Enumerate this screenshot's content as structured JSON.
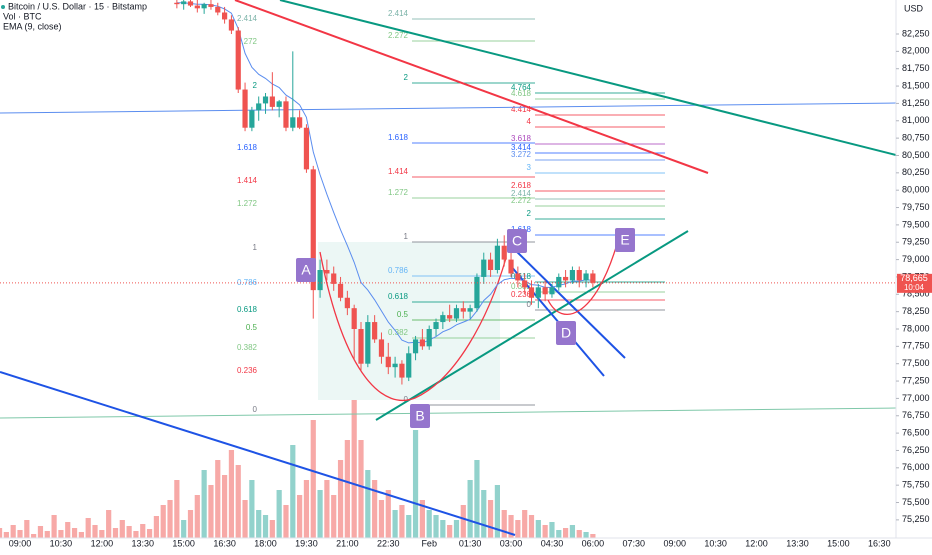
{
  "header": {
    "symbol": "Bitcoin / U.S. Dollar · 15 · Bitstamp",
    "volume": "Vol · BTC",
    "ema": "EMA (9, close)"
  },
  "chart_data": {
    "type": "candlestick",
    "categories": [
      null,
      null,
      null,
      "09:00",
      null,
      null,
      null,
      null,
      null,
      "10:30",
      null,
      null,
      null,
      null,
      null,
      "12:00",
      null,
      null,
      null,
      null,
      null,
      "13:30",
      null,
      null,
      null,
      null,
      null,
      "15:00",
      null,
      null,
      null,
      null,
      null,
      "16:30",
      null,
      null,
      null,
      null,
      null,
      "18:00",
      null,
      null,
      null,
      null,
      null,
      "19:30",
      null,
      null,
      null,
      null,
      null,
      "21:00",
      null,
      null,
      null,
      null,
      null,
      "22:30",
      null,
      null,
      null,
      null,
      null,
      "Feb",
      null,
      null,
      null,
      null,
      null,
      "01:30",
      null,
      null,
      null,
      null,
      null,
      "03:00",
      null,
      null,
      null,
      null,
      null,
      "04:30",
      null,
      null,
      null,
      null,
      null,
      "06:00"
    ],
    "open": [
      null,
      null,
      null,
      null,
      null,
      null,
      null,
      null,
      null,
      null,
      null,
      null,
      null,
      null,
      null,
      null,
      null,
      null,
      null,
      null,
      null,
      null,
      null,
      null,
      null,
      null,
      82700,
      82680,
      82720,
      82660,
      82620,
      82680,
      82640,
      82560,
      82460,
      82300,
      81450,
      80900,
      81150,
      81250,
      81350,
      81200,
      81280,
      80900,
      81050,
      80900,
      80300,
      78560,
      78850,
      78800,
      78650,
      78450,
      78300,
      78000,
      77500,
      78100,
      77850,
      77600,
      77450,
      77500,
      77300,
      77650,
      77850,
      77750,
      78000,
      78100,
      78200,
      78150,
      78300,
      78250,
      78300,
      78750,
      79000,
      78850,
      79200,
      79000,
      78800,
      78700,
      78600,
      78450,
      78600,
      78500,
      78600,
      78750,
      78700,
      78850,
      78700,
      78800
    ],
    "high": [
      null,
      null,
      null,
      null,
      null,
      null,
      null,
      null,
      null,
      null,
      null,
      null,
      null,
      null,
      null,
      null,
      null,
      null,
      null,
      null,
      null,
      null,
      null,
      null,
      null,
      null,
      82780,
      82760,
      82780,
      82740,
      82700,
      82760,
      82700,
      82640,
      82520,
      82350,
      81550,
      81200,
      81350,
      81400,
      81700,
      81300,
      81350,
      82000,
      81150,
      80950,
      80350,
      79000,
      79000,
      78900,
      78750,
      78550,
      78350,
      78100,
      78200,
      78200,
      77950,
      77800,
      77600,
      77550,
      77750,
      77900,
      78000,
      78050,
      78150,
      78250,
      78350,
      78350,
      78400,
      78350,
      78800,
      79100,
      79100,
      79300,
      79350,
      79100,
      78900,
      78800,
      78700,
      78650,
      78700,
      78650,
      78800,
      78850,
      78900,
      78900,
      78850,
      78850
    ],
    "low": [
      null,
      null,
      null,
      null,
      null,
      null,
      null,
      null,
      null,
      null,
      null,
      null,
      null,
      null,
      null,
      null,
      null,
      null,
      null,
      null,
      null,
      null,
      null,
      null,
      null,
      null,
      82620,
      82600,
      82640,
      82560,
      82540,
      82600,
      82520,
      82400,
      82250,
      81400,
      80850,
      80850,
      81000,
      81100,
      81150,
      81050,
      80850,
      80850,
      80880,
      80250,
      78150,
      78450,
      78700,
      78550,
      78400,
      78200,
      77550,
      77400,
      77450,
      77800,
      77500,
      77350,
      77300,
      77200,
      77250,
      77550,
      77700,
      77700,
      77900,
      78000,
      78100,
      78100,
      78150,
      78150,
      78250,
      78650,
      78750,
      78800,
      78900,
      78750,
      78600,
      78500,
      78350,
      78300,
      78400,
      78450,
      78550,
      78600,
      78650,
      78600,
      78600,
      78600
    ],
    "close": [
      null,
      null,
      null,
      null,
      null,
      null,
      null,
      null,
      null,
      null,
      null,
      null,
      null,
      null,
      null,
      null,
      null,
      null,
      null,
      null,
      null,
      null,
      null,
      null,
      null,
      null,
      82680,
      82720,
      82660,
      82620,
      82680,
      82640,
      82560,
      82460,
      82300,
      81450,
      80900,
      81150,
      81250,
      81350,
      81200,
      81280,
      80900,
      81050,
      80900,
      80300,
      78560,
      78850,
      78800,
      78650,
      78450,
      78300,
      78000,
      77500,
      78100,
      77850,
      77600,
      77450,
      77500,
      77300,
      77650,
      77850,
      77750,
      78000,
      78100,
      78200,
      78150,
      78300,
      78250,
      78300,
      78750,
      79000,
      78850,
      79200,
      79000,
      78800,
      78700,
      78600,
      78450,
      78600,
      78500,
      78600,
      78750,
      78700,
      78850,
      78700,
      78800,
      78665
    ],
    "volume": [
      12,
      8,
      15,
      10,
      20,
      6,
      14,
      9,
      25,
      10,
      18,
      12,
      8,
      22,
      15,
      10,
      30,
      12,
      20,
      14,
      9,
      16,
      11,
      24,
      35,
      40,
      60,
      20,
      30,
      45,
      70,
      55,
      80,
      65,
      90,
      75,
      40,
      60,
      30,
      25,
      20,
      50,
      35,
      95,
      45,
      60,
      120,
      50,
      60,
      45,
      80,
      100,
      140,
      100,
      70,
      60,
      40,
      50,
      30,
      35,
      25,
      110,
      40,
      30,
      25,
      20,
      15,
      20,
      35,
      60,
      80,
      50,
      40,
      55,
      30,
      25,
      20,
      30,
      25,
      20,
      15,
      18,
      10,
      12,
      15,
      10,
      8,
      6
    ],
    "ema": [
      null,
      null,
      null,
      null,
      null,
      null,
      null,
      null,
      null,
      null,
      null,
      null,
      null,
      null,
      null,
      null,
      null,
      null,
      null,
      null,
      null,
      null,
      null,
      null,
      null,
      null,
      82700,
      82700,
      82690,
      82680,
      82680,
      82670,
      82650,
      82610,
      82550,
      82330,
      81970,
      81770,
      81670,
      81610,
      81530,
      81480,
      81370,
      81310,
      81230,
      81050,
      80550,
      80220,
      79940,
      79680,
      79430,
      79200,
      78960,
      78670,
      78560,
      78420,
      78260,
      78100,
      77980,
      77840,
      77800,
      77810,
      77800,
      77840,
      77890,
      77960,
      78000,
      78060,
      78100,
      78140,
      78260,
      78410,
      78500,
      78640,
      78710,
      78730,
      78720,
      78690,
      78640,
      78630,
      78600,
      78600,
      78630,
      78650,
      78690,
      78690,
      78710,
      78700
    ],
    "up_color": "#26a69a",
    "down_color": "#ef5350",
    "ema_color": "#5b8def",
    "xticks": [
      {
        "value": 93,
        "label": "07:30"
      },
      {
        "value": 99,
        "label": "09:00"
      },
      {
        "value": 105,
        "label": "10:30"
      },
      {
        "value": 111,
        "label": "12:00"
      },
      {
        "value": 117,
        "label": "13:30"
      },
      {
        "value": 123,
        "label": "15:00"
      },
      {
        "value": 129,
        "label": "16:30"
      }
    ],
    "ylim": [
      74960,
      82740
    ],
    "yticks": [
      {
        "value": 82250,
        "label": "82,250"
      },
      {
        "value": 82000,
        "label": "82,000"
      },
      {
        "value": 81750,
        "label": "81,750"
      },
      {
        "value": 81500,
        "label": "81,500"
      },
      {
        "value": 81250,
        "label": "81,250"
      },
      {
        "value": 81000,
        "label": "81,000"
      },
      {
        "value": 80750,
        "label": "80,750"
      },
      {
        "value": 80500,
        "label": "80,500"
      },
      {
        "value": 80250,
        "label": "80,250"
      },
      {
        "value": 80000,
        "label": "80,000"
      },
      {
        "value": 79750,
        "label": "79,750"
      },
      {
        "value": 79500,
        "label": "79,500"
      },
      {
        "value": 79250,
        "label": "79,250"
      },
      {
        "value": 79000,
        "label": "79,000"
      },
      {
        "value": 78750,
        "label": "78,750"
      },
      {
        "value": 78500,
        "label": "78,500"
      },
      {
        "value": 78250,
        "label": "78,250"
      },
      {
        "value": 78000,
        "label": "78,000"
      },
      {
        "value": 77750,
        "label": "77,750"
      },
      {
        "value": 77500,
        "label": "77,500"
      },
      {
        "value": 77250,
        "label": "77,250"
      },
      {
        "value": 77000,
        "label": "77,000"
      },
      {
        "value": 76750,
        "label": "76,750"
      },
      {
        "value": 76500,
        "label": "76,500"
      },
      {
        "value": 76250,
        "label": "76,250"
      },
      {
        "value": 76000,
        "label": "76,000"
      },
      {
        "value": 75750,
        "label": "75,750"
      },
      {
        "value": 75500,
        "label": "75,500"
      },
      {
        "value": 75250,
        "label": "75,250"
      }
    ],
    "y_axis_label": "USD",
    "last_price": {
      "value": 78665,
      "label": "78,665",
      "countdown": "10:04"
    },
    "pattern_points": [
      "A",
      "B",
      "C",
      "D",
      "E"
    ],
    "fib_sets": [
      {
        "labels": [
          "2.414",
          "2.272",
          "2",
          "1.618",
          "1.414",
          "1.272",
          "1",
          "0.786",
          "0.618",
          "0.5",
          "0.382",
          "0.236",
          "0"
        ]
      },
      {
        "labels": [
          "2.414",
          "2.272",
          "2",
          "1.618",
          "1.414",
          "1.272",
          "1",
          "0.786",
          "0.618",
          "0.5",
          "0.382",
          "0"
        ]
      },
      {
        "labels": [
          "4.764",
          "4.618",
          "4.414",
          "4",
          "3.618",
          "3.414",
          "3.272",
          "3",
          "2.618",
          "2.414",
          "2.272",
          "2",
          "1.618",
          "0.618",
          "0.382",
          "0.236",
          "0"
        ]
      }
    ]
  }
}
